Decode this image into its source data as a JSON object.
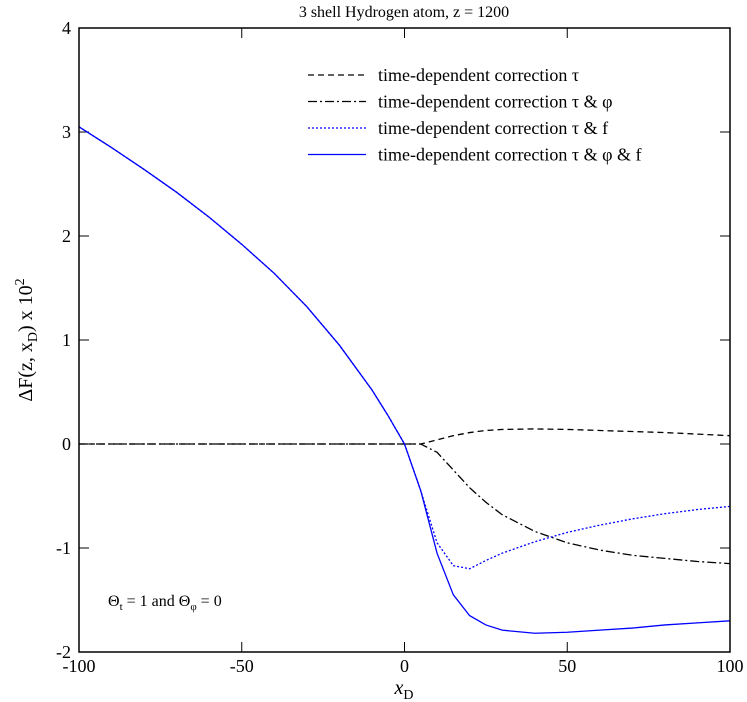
{
  "chart_data": {
    "type": "line",
    "title": "3 shell Hydrogen atom, z = 1200",
    "xlabel": [
      "x",
      "D"
    ],
    "ylabel": [
      "ΔF(z, x",
      "D",
      ") x 10",
      "2"
    ],
    "annotation": [
      "Θ",
      "t",
      " = 1 and Θ",
      "φ",
      " = 0"
    ],
    "x": [
      -100,
      -90,
      -80,
      -70,
      -60,
      -50,
      -40,
      -30,
      -20,
      -10,
      -5,
      0,
      5,
      10,
      15,
      20,
      25,
      30,
      40,
      50,
      60,
      70,
      80,
      90,
      100
    ],
    "xlim": [
      -100,
      100
    ],
    "xticks": [
      -100,
      -50,
      0,
      50,
      100
    ],
    "ylim": [
      -2,
      4
    ],
    "yticks": [
      -2,
      -1,
      0,
      1,
      2,
      3,
      4
    ],
    "grid": false,
    "legend": "upper right",
    "series": [
      {
        "name": "time-dependent correction τ",
        "color": "#000000",
        "style": "dashed",
        "values": [
          0,
          0,
          0,
          0,
          0,
          0,
          0,
          0,
          0,
          0,
          0,
          0,
          0,
          0.04,
          0.08,
          0.11,
          0.13,
          0.14,
          0.145,
          0.14,
          0.13,
          0.12,
          0.11,
          0.095,
          0.08
        ]
      },
      {
        "name": "time-dependent correction τ & φ",
        "color": "#000000",
        "style": "dashdot",
        "values": [
          0,
          0,
          0,
          0,
          0,
          0,
          0,
          0,
          0,
          0,
          0,
          0,
          0,
          -0.08,
          -0.25,
          -0.42,
          -0.56,
          -0.68,
          -0.84,
          -0.95,
          -1.02,
          -1.07,
          -1.1,
          -1.13,
          -1.15
        ]
      },
      {
        "name": "time-dependent correction τ & f",
        "color": "#0000ff",
        "style": "dotted",
        "values": [
          3.05,
          2.85,
          2.64,
          2.42,
          2.18,
          1.92,
          1.64,
          1.32,
          0.95,
          0.52,
          0.27,
          0,
          -0.45,
          -0.95,
          -1.17,
          -1.2,
          -1.12,
          -1.05,
          -0.94,
          -0.85,
          -0.78,
          -0.72,
          -0.67,
          -0.63,
          -0.6
        ]
      },
      {
        "name": "time-dependent correction τ & φ & f",
        "color": "#0000ff",
        "style": "solid",
        "values": [
          3.05,
          2.85,
          2.64,
          2.42,
          2.18,
          1.92,
          1.64,
          1.32,
          0.95,
          0.52,
          0.27,
          0,
          -0.45,
          -1.05,
          -1.45,
          -1.65,
          -1.74,
          -1.79,
          -1.82,
          -1.81,
          -1.79,
          -1.77,
          -1.74,
          -1.72,
          -1.7
        ]
      }
    ]
  }
}
